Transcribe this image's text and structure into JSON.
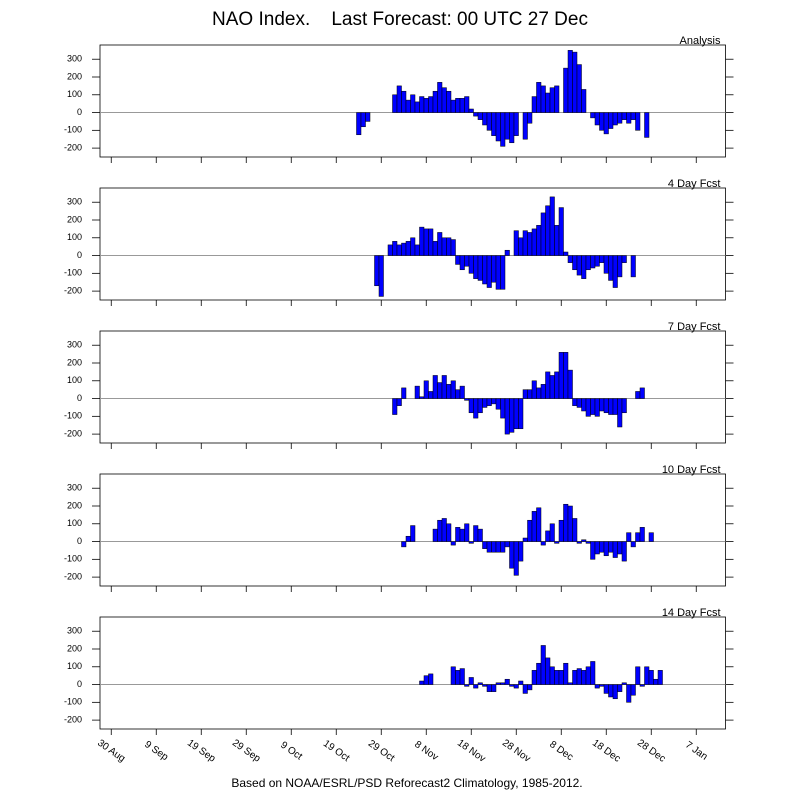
{
  "chart_data": {
    "type": "bar",
    "title": "NAO Index.    Last Forecast: 00 UTC 27 Dec",
    "note": "Based on NOAA/ESRL/PSD Reforecast2 Climatology, 1985-2012.",
    "categories": [
      null,
      null,
      "30 Aug",
      null,
      null,
      null,
      null,
      null,
      null,
      null,
      null,
      null,
      "9 Sep",
      null,
      null,
      null,
      null,
      null,
      null,
      null,
      null,
      null,
      "19 Sep",
      null,
      null,
      null,
      null,
      null,
      null,
      null,
      null,
      null,
      "29 Sep",
      null,
      null,
      null,
      null,
      null,
      null,
      null,
      null,
      null,
      "9 Oct",
      null,
      null,
      null,
      null,
      null,
      null,
      null,
      null,
      null,
      "19 Oct",
      null,
      null,
      null,
      null,
      null,
      null,
      null,
      null,
      null,
      "29 Oct",
      null,
      null,
      null,
      null,
      null,
      null,
      null,
      null,
      null,
      "8 Nov",
      null,
      null,
      null,
      null,
      null,
      null,
      null,
      null,
      null,
      "18 Nov",
      null,
      null,
      null,
      null,
      null,
      null,
      null,
      null,
      null,
      "28 Nov",
      null,
      null,
      null,
      null,
      null,
      null,
      null,
      null,
      null,
      "8 Dec",
      null,
      null,
      null,
      null,
      null,
      null,
      null,
      null,
      null,
      "18 Dec",
      null,
      null,
      null,
      null,
      null,
      null,
      null,
      null,
      null,
      "28 Dec",
      null,
      null,
      null,
      null,
      null,
      null,
      null,
      null,
      null,
      "7 Jan",
      null,
      null,
      null,
      null,
      null,
      null
    ],
    "ylim": [
      -250,
      380
    ],
    "yticks": [
      -200,
      -100,
      0,
      100,
      200,
      300
    ],
    "series": [
      {
        "name": "Analysis",
        "color": "#0000ff",
        "values": [
          null,
          null,
          null,
          null,
          null,
          null,
          null,
          null,
          null,
          null,
          null,
          null,
          null,
          null,
          null,
          null,
          null,
          null,
          null,
          null,
          null,
          null,
          null,
          null,
          null,
          null,
          null,
          null,
          null,
          null,
          null,
          null,
          null,
          null,
          null,
          null,
          null,
          null,
          null,
          null,
          null,
          null,
          null,
          null,
          null,
          null,
          null,
          null,
          null,
          null,
          null,
          null,
          null,
          null,
          null,
          null,
          null,
          -125,
          -80,
          -50,
          null,
          null,
          null,
          null,
          null,
          100,
          150,
          120,
          70,
          100,
          60,
          90,
          80,
          90,
          120,
          170,
          140,
          120,
          70,
          80,
          80,
          90,
          20,
          -20,
          -40,
          -70,
          -100,
          -130,
          -160,
          -190,
          -150,
          -170,
          -130,
          null,
          -150,
          -60,
          90,
          170,
          150,
          110,
          140,
          150,
          null,
          250,
          350,
          340,
          270,
          130,
          null,
          -30,
          -70,
          -100,
          -120,
          -90,
          -70,
          -60,
          -40,
          -60,
          -40,
          -100,
          null,
          -140,
          null,
          null,
          null,
          null,
          null,
          null,
          null,
          null,
          null,
          null,
          null,
          null,
          null,
          null,
          null,
          null,
          null
        ]
      },
      {
        "name": "4 Day Fcst",
        "color": "#0000ff",
        "values": [
          null,
          null,
          null,
          null,
          null,
          null,
          null,
          null,
          null,
          null,
          null,
          null,
          null,
          null,
          null,
          null,
          null,
          null,
          null,
          null,
          null,
          null,
          null,
          null,
          null,
          null,
          null,
          null,
          null,
          null,
          null,
          null,
          null,
          null,
          null,
          null,
          null,
          null,
          null,
          null,
          null,
          null,
          null,
          null,
          null,
          null,
          null,
          null,
          null,
          null,
          null,
          null,
          null,
          null,
          null,
          null,
          null,
          null,
          null,
          null,
          null,
          -170,
          -230,
          null,
          60,
          80,
          60,
          70,
          80,
          100,
          60,
          160,
          150,
          150,
          80,
          130,
          100,
          100,
          90,
          -50,
          -80,
          -60,
          -100,
          -130,
          -140,
          -160,
          -180,
          -150,
          -190,
          -190,
          30,
          null,
          140,
          100,
          140,
          130,
          150,
          170,
          240,
          280,
          330,
          170,
          270,
          20,
          -40,
          -80,
          -110,
          -130,
          -80,
          -70,
          -60,
          -40,
          -100,
          -140,
          -180,
          -120,
          -40,
          null,
          -120,
          null,
          null,
          null,
          null,
          null,
          null,
          null,
          null,
          null,
          null,
          null,
          null,
          null,
          null,
          null,
          null,
          null,
          null,
          null,
          null
        ]
      },
      {
        "name": "7 Day Fcst",
        "color": "#0000ff",
        "values": [
          null,
          null,
          null,
          null,
          null,
          null,
          null,
          null,
          null,
          null,
          null,
          null,
          null,
          null,
          null,
          null,
          null,
          null,
          null,
          null,
          null,
          null,
          null,
          null,
          null,
          null,
          null,
          null,
          null,
          null,
          null,
          null,
          null,
          null,
          null,
          null,
          null,
          null,
          null,
          null,
          null,
          null,
          null,
          null,
          null,
          null,
          null,
          null,
          null,
          null,
          null,
          null,
          null,
          null,
          null,
          null,
          null,
          null,
          null,
          null,
          null,
          null,
          null,
          null,
          null,
          -90,
          -40,
          60,
          null,
          null,
          70,
          10,
          100,
          40,
          130,
          90,
          130,
          80,
          100,
          50,
          70,
          -10,
          -80,
          -110,
          -80,
          -50,
          -40,
          -30,
          -60,
          -110,
          -200,
          -190,
          -170,
          -170,
          50,
          50,
          100,
          60,
          80,
          150,
          130,
          150,
          260,
          260,
          160,
          -40,
          -50,
          -70,
          -100,
          -90,
          -100,
          -70,
          -80,
          -90,
          -90,
          -160,
          -80,
          null,
          null,
          40,
          60,
          null,
          null,
          null,
          null,
          null,
          null,
          null,
          null,
          null,
          null,
          null,
          null,
          null,
          null,
          null,
          null,
          null,
          null
        ]
      },
      {
        "name": "10 Day Fcst",
        "color": "#0000ff",
        "values": [
          null,
          null,
          null,
          null,
          null,
          null,
          null,
          null,
          null,
          null,
          null,
          null,
          null,
          null,
          null,
          null,
          null,
          null,
          null,
          null,
          null,
          null,
          null,
          null,
          null,
          null,
          null,
          null,
          null,
          null,
          null,
          null,
          null,
          null,
          null,
          null,
          null,
          null,
          null,
          null,
          null,
          null,
          null,
          null,
          null,
          null,
          null,
          null,
          null,
          null,
          null,
          null,
          null,
          null,
          null,
          null,
          null,
          null,
          null,
          null,
          null,
          null,
          null,
          null,
          null,
          null,
          null,
          -30,
          30,
          90,
          null,
          null,
          null,
          null,
          70,
          120,
          130,
          100,
          -20,
          80,
          70,
          100,
          -10,
          90,
          70,
          -40,
          -60,
          -60,
          -60,
          -60,
          -30,
          -150,
          -190,
          -110,
          20,
          120,
          170,
          190,
          -20,
          60,
          100,
          -10,
          120,
          210,
          200,
          130,
          -10,
          10,
          -10,
          -100,
          -70,
          -60,
          -80,
          -60,
          -90,
          -70,
          -110,
          50,
          -30,
          50,
          80,
          null,
          50,
          null,
          null,
          null,
          null,
          null,
          null,
          null,
          null,
          null,
          null,
          null,
          null,
          null,
          null,
          null,
          null
        ]
      },
      {
        "name": "14 Day Fcst",
        "color": "#0000ff",
        "values": [
          null,
          null,
          null,
          null,
          null,
          null,
          null,
          null,
          null,
          null,
          null,
          null,
          null,
          null,
          null,
          null,
          null,
          null,
          null,
          null,
          null,
          null,
          null,
          null,
          null,
          null,
          null,
          null,
          null,
          null,
          null,
          null,
          null,
          null,
          null,
          null,
          null,
          null,
          null,
          null,
          null,
          null,
          null,
          null,
          null,
          null,
          null,
          null,
          null,
          null,
          null,
          null,
          null,
          null,
          null,
          null,
          null,
          null,
          null,
          null,
          null,
          null,
          null,
          null,
          null,
          null,
          null,
          null,
          null,
          null,
          null,
          20,
          50,
          60,
          null,
          null,
          null,
          null,
          100,
          80,
          90,
          -10,
          40,
          -20,
          10,
          -10,
          -40,
          -40,
          10,
          10,
          30,
          -10,
          -20,
          20,
          -50,
          -30,
          80,
          120,
          220,
          150,
          100,
          80,
          80,
          120,
          10,
          80,
          90,
          80,
          100,
          130,
          -20,
          -10,
          -50,
          -70,
          -80,
          -40,
          10,
          -100,
          -60,
          100,
          -10,
          100,
          80,
          30,
          80,
          null,
          null,
          null,
          null,
          null,
          null,
          null,
          null,
          null,
          null,
          null,
          null,
          null,
          null
        ]
      }
    ]
  }
}
